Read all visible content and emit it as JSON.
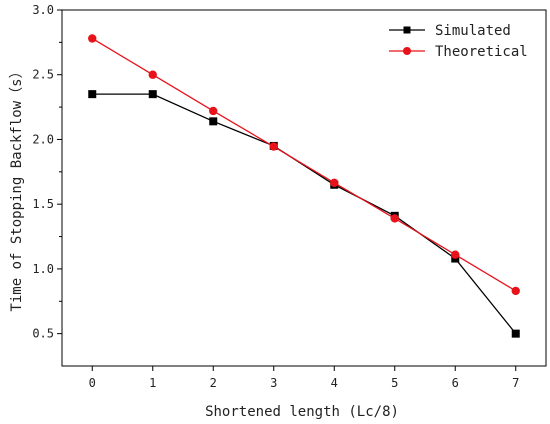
{
  "chart_data": {
    "type": "line",
    "title": "",
    "xlabel": "Shortened length (Lc/8)",
    "ylabel": "Time of Stopping Backflow（s）",
    "x": [
      0,
      1,
      2,
      3,
      4,
      5,
      6,
      7
    ],
    "xlim": [
      -0.5,
      7.5
    ],
    "ylim": [
      0.25,
      3.0
    ],
    "xticks": [
      "0",
      "1",
      "2",
      "3",
      "4",
      "5",
      "6",
      "7"
    ],
    "yticks": [
      "0.5",
      "1.0",
      "1.5",
      "2.0",
      "2.5",
      "3.0"
    ],
    "grid": false,
    "legend_position": "top-right",
    "series": [
      {
        "name": "Simulated",
        "color": "#000000",
        "marker": "square",
        "values": [
          2.35,
          2.35,
          2.14,
          1.95,
          1.65,
          1.41,
          1.08,
          0.5
        ]
      },
      {
        "name": "Theoretical",
        "color": "#e8121b",
        "marker": "circle",
        "values": [
          2.78,
          2.5,
          2.22,
          1.945,
          1.665,
          1.39,
          1.11,
          0.83
        ]
      }
    ]
  }
}
